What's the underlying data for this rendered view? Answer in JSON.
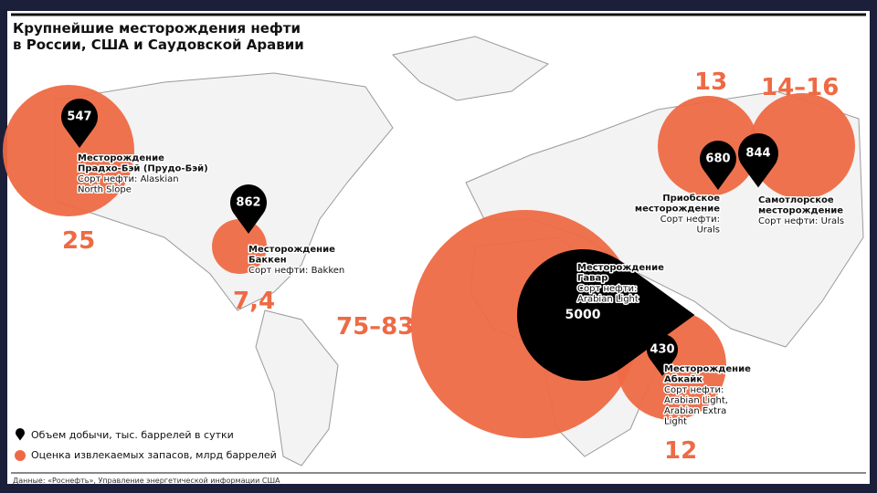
{
  "header": {
    "title": [
      "Крупнейшие месторождения нефти",
      "в России, США и Саудовской Аравии"
    ]
  },
  "fields": [
    {
      "production": 547,
      "reserves": "25",
      "lines": [
        "Месторождение",
        "Прадхо-Бэй (Прудо-Бэй)",
        "Сорт нефти: Alaskian",
        "North Slope"
      ]
    },
    {
      "production": 862,
      "reserves": "7,4",
      "lines": [
        "Месторождение",
        "Баккен",
        "Сорт нефти: Bakken"
      ]
    },
    {
      "production": 5000,
      "reserves": "75–83",
      "lines": [
        "Месторождение",
        "Гавар",
        "Сорт нефти:",
        "Arabian Light"
      ]
    },
    {
      "production": 430,
      "reserves": "12",
      "lines": [
        "Месторождение",
        "Абкайк",
        "Сорт нефти:",
        "Arabian Light,",
        "Arabian Extra",
        "Light"
      ]
    },
    {
      "production": 680,
      "reserves": "13",
      "lines": [
        "Приобское",
        "месторождение",
        "Сорт нефти:",
        "Urals"
      ]
    },
    {
      "production": 844,
      "reserves": "14–16",
      "lines": [
        "Самотлорское",
        "месторождение",
        "Сорт нефти: Urals"
      ]
    }
  ],
  "legend": {
    "production": "Объем добычи, тыс. баррелей в сутки",
    "reserves": "Оценка извлекаемых запасов, млрд баррелей"
  },
  "footer": {
    "source": "Данные: «Роснефть», Управление энергетической информации США"
  }
}
